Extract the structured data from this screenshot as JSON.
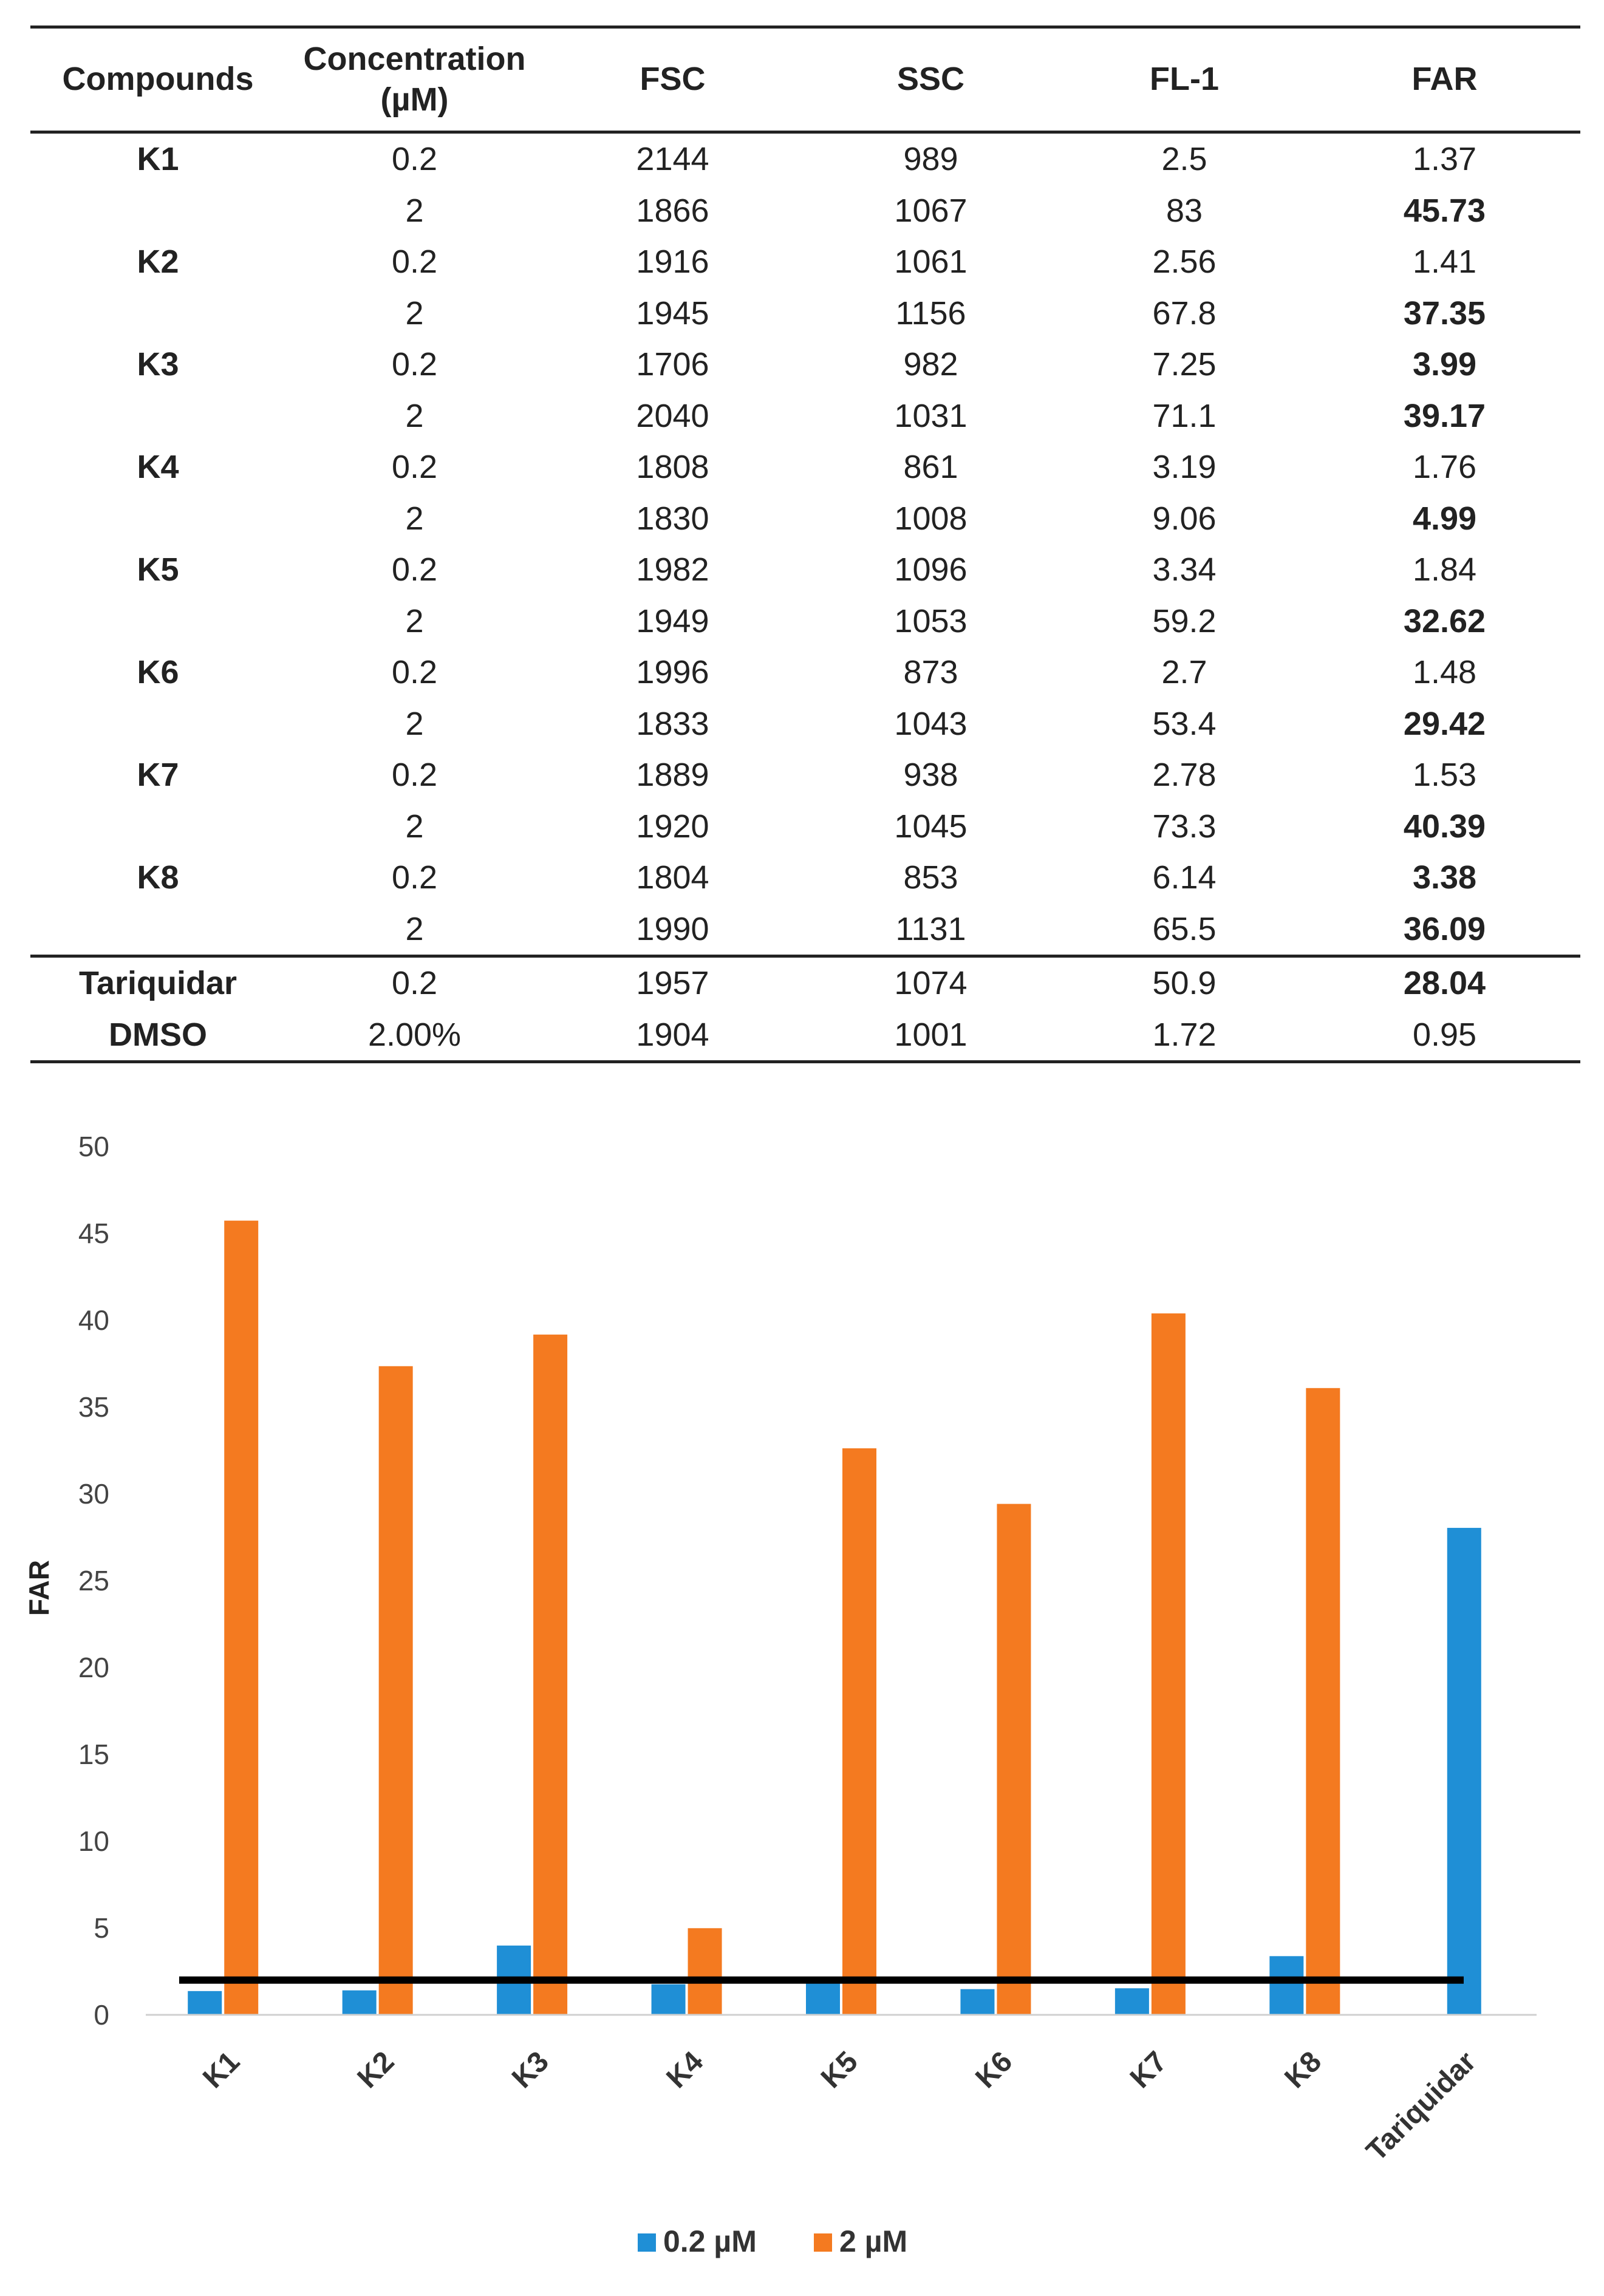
{
  "table": {
    "headers": [
      "Compounds",
      "Concentration\n(µM)",
      "FSC",
      "SSC",
      "FL-1",
      "FAR"
    ],
    "rows": [
      {
        "compound": "K1",
        "conc": "0.2",
        "fsc": "2144",
        "ssc": "989",
        "fl1": "2.5",
        "far": "1.37",
        "far_bold": false
      },
      {
        "compound": "",
        "conc": "2",
        "fsc": "1866",
        "ssc": "1067",
        "fl1": "83",
        "far": "45.73",
        "far_bold": true
      },
      {
        "compound": "K2",
        "conc": "0.2",
        "fsc": "1916",
        "ssc": "1061",
        "fl1": "2.56",
        "far": "1.41",
        "far_bold": false
      },
      {
        "compound": "",
        "conc": "2",
        "fsc": "1945",
        "ssc": "1156",
        "fl1": "67.8",
        "far": "37.35",
        "far_bold": true
      },
      {
        "compound": "K3",
        "conc": "0.2",
        "fsc": "1706",
        "ssc": "982",
        "fl1": "7.25",
        "far": "3.99",
        "far_bold": true
      },
      {
        "compound": "",
        "conc": "2",
        "fsc": "2040",
        "ssc": "1031",
        "fl1": "71.1",
        "far": "39.17",
        "far_bold": true
      },
      {
        "compound": "K4",
        "conc": "0.2",
        "fsc": "1808",
        "ssc": "861",
        "fl1": "3.19",
        "far": "1.76",
        "far_bold": false
      },
      {
        "compound": "",
        "conc": "2",
        "fsc": "1830",
        "ssc": "1008",
        "fl1": "9.06",
        "far": "4.99",
        "far_bold": true
      },
      {
        "compound": "K5",
        "conc": "0.2",
        "fsc": "1982",
        "ssc": "1096",
        "fl1": "3.34",
        "far": "1.84",
        "far_bold": false
      },
      {
        "compound": "",
        "conc": "2",
        "fsc": "1949",
        "ssc": "1053",
        "fl1": "59.2",
        "far": "32.62",
        "far_bold": true
      },
      {
        "compound": "K6",
        "conc": "0.2",
        "fsc": "1996",
        "ssc": "873",
        "fl1": "2.7",
        "far": "1.48",
        "far_bold": false
      },
      {
        "compound": "",
        "conc": "2",
        "fsc": "1833",
        "ssc": "1043",
        "fl1": "53.4",
        "far": "29.42",
        "far_bold": true
      },
      {
        "compound": "K7",
        "conc": "0.2",
        "fsc": "1889",
        "ssc": "938",
        "fl1": "2.78",
        "far": "1.53",
        "far_bold": false
      },
      {
        "compound": "",
        "conc": "2",
        "fsc": "1920",
        "ssc": "1045",
        "fl1": "73.3",
        "far": "40.39",
        "far_bold": true
      },
      {
        "compound": "K8",
        "conc": "0.2",
        "fsc": "1804",
        "ssc": "853",
        "fl1": "6.14",
        "far": "3.38",
        "far_bold": true
      },
      {
        "compound": "",
        "conc": "2",
        "fsc": "1990",
        "ssc": "1131",
        "fl1": "65.5",
        "far": "36.09",
        "far_bold": true
      },
      {
        "compound": "Tariquidar",
        "conc": "0.2",
        "fsc": "1957",
        "ssc": "1074",
        "fl1": "50.9",
        "far": "28.04",
        "far_bold": true
      },
      {
        "compound": "DMSO",
        "conc": "2.00%",
        "fsc": "1904",
        "ssc": "1001",
        "fl1": "1.72",
        "far": "0.95",
        "far_bold": false
      }
    ]
  },
  "chart_data": {
    "type": "bar",
    "categories": [
      "K1",
      "K2",
      "K3",
      "K4",
      "K5",
      "K6",
      "K7",
      "K8",
      "Tariquidar"
    ],
    "series": [
      {
        "name": "0.2 µM",
        "color": "#1f8fd6",
        "values": [
          1.37,
          1.41,
          3.99,
          1.76,
          1.84,
          1.48,
          1.53,
          3.38,
          28.04
        ]
      },
      {
        "name": "2 µM",
        "color": "#f47a20",
        "values": [
          45.73,
          37.35,
          39.17,
          4.99,
          32.62,
          29.42,
          40.39,
          36.09,
          null
        ]
      }
    ],
    "ylabel": "FAR",
    "ylim": [
      0,
      50
    ],
    "yticks": [
      0,
      5,
      10,
      15,
      20,
      25,
      30,
      35,
      40,
      45,
      50
    ],
    "threshold": {
      "value": 2,
      "color": "#000000"
    },
    "grid": false,
    "legend": "bottom-center"
  }
}
